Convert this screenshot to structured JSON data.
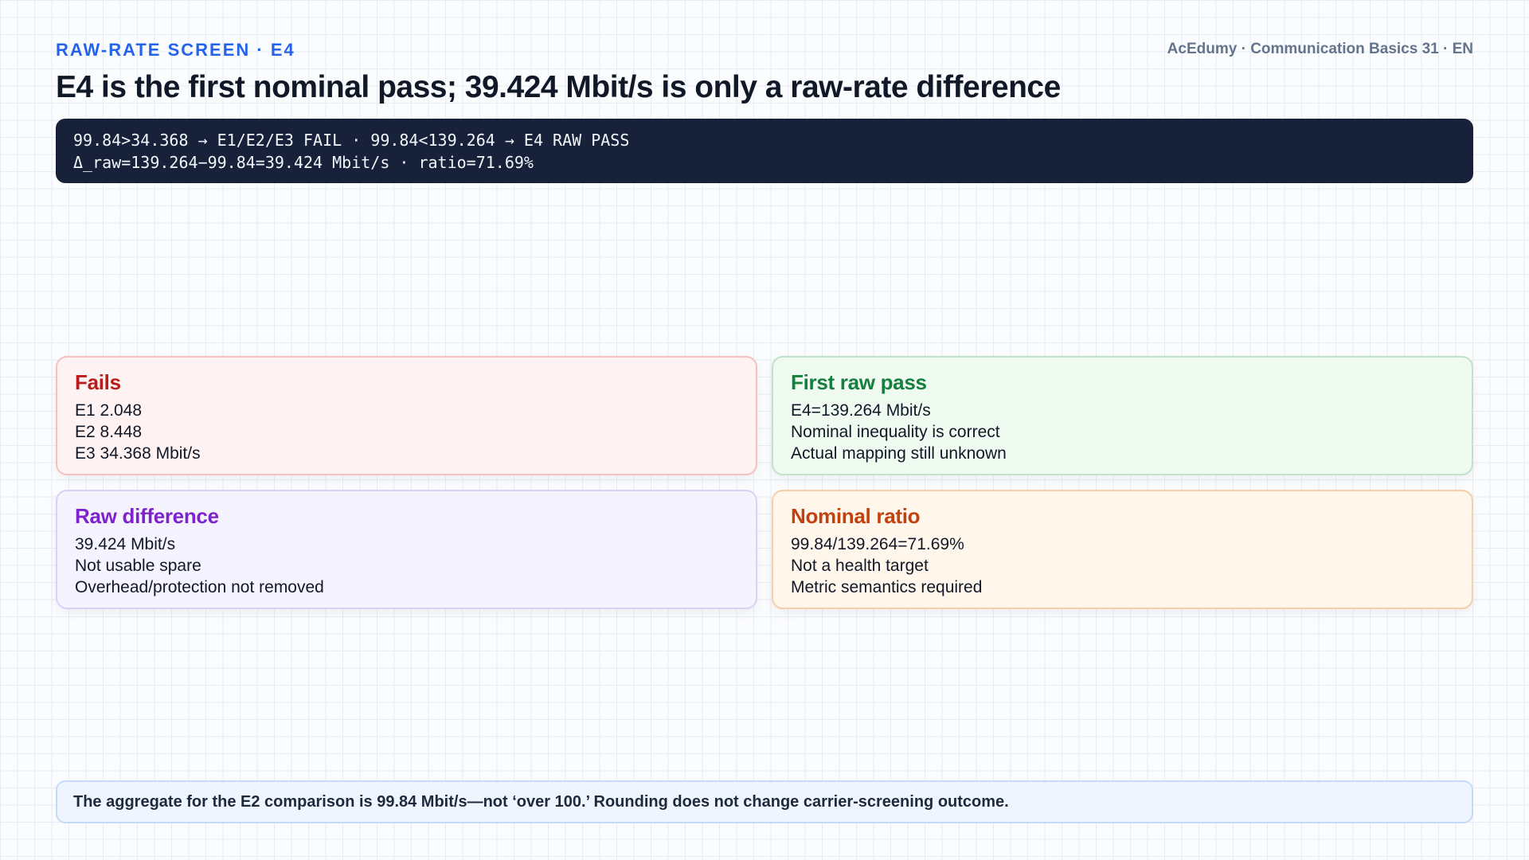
{
  "header": {
    "kicker": "RAW-RATE SCREEN · E4",
    "brand": "AcEdumy · Communication Basics 31 · EN"
  },
  "title": "E4 is the first nominal pass; 39.424 Mbit/s is only a raw-rate difference",
  "code": {
    "line1": "99.84>34.368 → E1/E2/E3 FAIL · 99.84<139.264 → E4 RAW PASS",
    "line2": "Δ_raw=139.264−99.84=39.424 Mbit/s · ratio=71.69%"
  },
  "cards": [
    {
      "title": "Fails",
      "lines": [
        "E1 2.048",
        "E2 8.448",
        "E3 34.368 Mbit/s"
      ]
    },
    {
      "title": "First raw pass",
      "lines": [
        "E4=139.264 Mbit/s",
        "Nominal inequality is correct",
        "Actual mapping still unknown"
      ]
    },
    {
      "title": "Raw difference",
      "lines": [
        "39.424 Mbit/s",
        "Not usable spare",
        "Overhead/protection not removed"
      ]
    },
    {
      "title": "Nominal ratio",
      "lines": [
        "99.84/139.264=71.69%",
        "Not a health target",
        "Metric semantics required"
      ]
    }
  ],
  "footer": {
    "note": "The aggregate for the E2 comparison is 99.84 Mbit/s—not ‘over 100.’ Rounding does not change carrier-screening outcome."
  },
  "colors": {
    "accent": "#2563eb",
    "fails": "#b91c1c",
    "pass": "#15803d",
    "difference": "#7e22ce",
    "ratio": "#c2410c",
    "code_bg": "#18213a"
  }
}
